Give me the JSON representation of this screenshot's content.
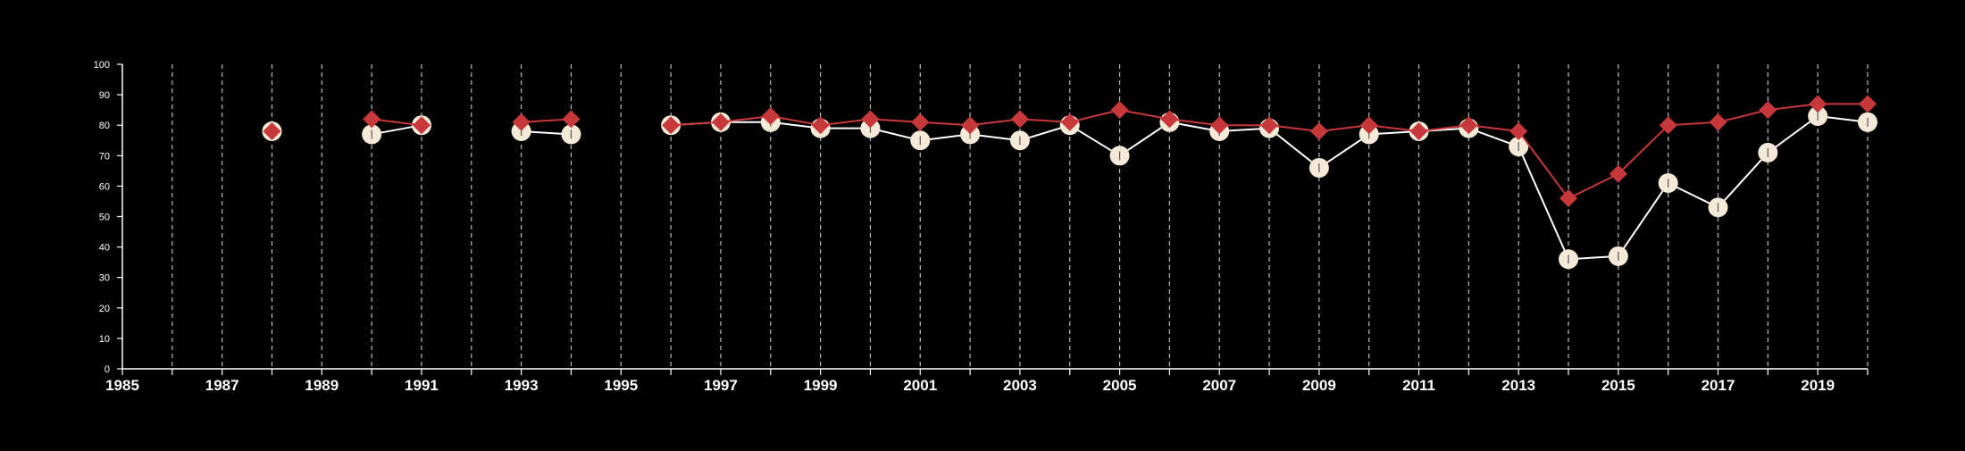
{
  "chart_data": {
    "type": "line",
    "title": "",
    "xlabel": "",
    "ylabel": "",
    "xlim": [
      1985,
      2020
    ],
    "ylim": [
      0,
      100
    ],
    "yticks": [
      0,
      10,
      20,
      30,
      40,
      50,
      60,
      70,
      80,
      90,
      100
    ],
    "x_tick_labels": [
      "1985",
      "1987",
      "1989",
      "1991",
      "1993",
      "1995",
      "1997",
      "1999",
      "2001",
      "2003",
      "2005",
      "2007",
      "2009",
      "2011",
      "2013",
      "2015",
      "2017",
      "2019"
    ],
    "grid": "vertical dashed lines at each year",
    "legend": "none",
    "colors": {
      "background": "#000000",
      "axis": "#ffffff",
      "grid": "#bbbbbb"
    },
    "series": [
      {
        "marker": "circle",
        "color": "#f5e9d8",
        "line_color": "#ffffff",
        "points": [
          {
            "x": 1988,
            "y": 78
          },
          {
            "x": 1990,
            "y": 77
          },
          {
            "x": 1991,
            "y": 80
          },
          {
            "x": 1993,
            "y": 78
          },
          {
            "x": 1994,
            "y": 77
          },
          {
            "x": 1996,
            "y": 80
          },
          {
            "x": 1997,
            "y": 81
          },
          {
            "x": 1998,
            "y": 81
          },
          {
            "x": 1999,
            "y": 79
          },
          {
            "x": 2000,
            "y": 79
          },
          {
            "x": 2001,
            "y": 75
          },
          {
            "x": 2002,
            "y": 77
          },
          {
            "x": 2003,
            "y": 75
          },
          {
            "x": 2004,
            "y": 80
          },
          {
            "x": 2005,
            "y": 70
          },
          {
            "x": 2006,
            "y": 81
          },
          {
            "x": 2007,
            "y": 78
          },
          {
            "x": 2008,
            "y": 79
          },
          {
            "x": 2009,
            "y": 66
          },
          {
            "x": 2010,
            "y": 77
          },
          {
            "x": 2011,
            "y": 78
          },
          {
            "x": 2012,
            "y": 79
          },
          {
            "x": 2013,
            "y": 73
          },
          {
            "x": 2014,
            "y": 36
          },
          {
            "x": 2015,
            "y": 37
          },
          {
            "x": 2016,
            "y": 61
          },
          {
            "x": 2017,
            "y": 53
          },
          {
            "x": 2018,
            "y": 71
          },
          {
            "x": 2019,
            "y": 83
          },
          {
            "x": 2020,
            "y": 81
          }
        ]
      },
      {
        "marker": "diamond",
        "color": "#c8383a",
        "line_color": "#c8383a",
        "points": [
          {
            "x": 1988,
            "y": 78
          },
          {
            "x": 1990,
            "y": 82
          },
          {
            "x": 1991,
            "y": 80
          },
          {
            "x": 1993,
            "y": 81
          },
          {
            "x": 1994,
            "y": 82
          },
          {
            "x": 1996,
            "y": 80
          },
          {
            "x": 1997,
            "y": 81
          },
          {
            "x": 1998,
            "y": 83
          },
          {
            "x": 1999,
            "y": 80
          },
          {
            "x": 2000,
            "y": 82
          },
          {
            "x": 2001,
            "y": 81
          },
          {
            "x": 2002,
            "y": 80
          },
          {
            "x": 2003,
            "y": 82
          },
          {
            "x": 2004,
            "y": 81
          },
          {
            "x": 2005,
            "y": 85
          },
          {
            "x": 2006,
            "y": 82
          },
          {
            "x": 2007,
            "y": 80
          },
          {
            "x": 2008,
            "y": 80
          },
          {
            "x": 2009,
            "y": 78
          },
          {
            "x": 2010,
            "y": 80
          },
          {
            "x": 2011,
            "y": 78
          },
          {
            "x": 2012,
            "y": 80
          },
          {
            "x": 2013,
            "y": 78
          },
          {
            "x": 2014,
            "y": 56
          },
          {
            "x": 2015,
            "y": 64
          },
          {
            "x": 2016,
            "y": 80
          },
          {
            "x": 2017,
            "y": 81
          },
          {
            "x": 2018,
            "y": 85
          },
          {
            "x": 2019,
            "y": 87
          },
          {
            "x": 2020,
            "y": 87
          }
        ]
      }
    ]
  }
}
